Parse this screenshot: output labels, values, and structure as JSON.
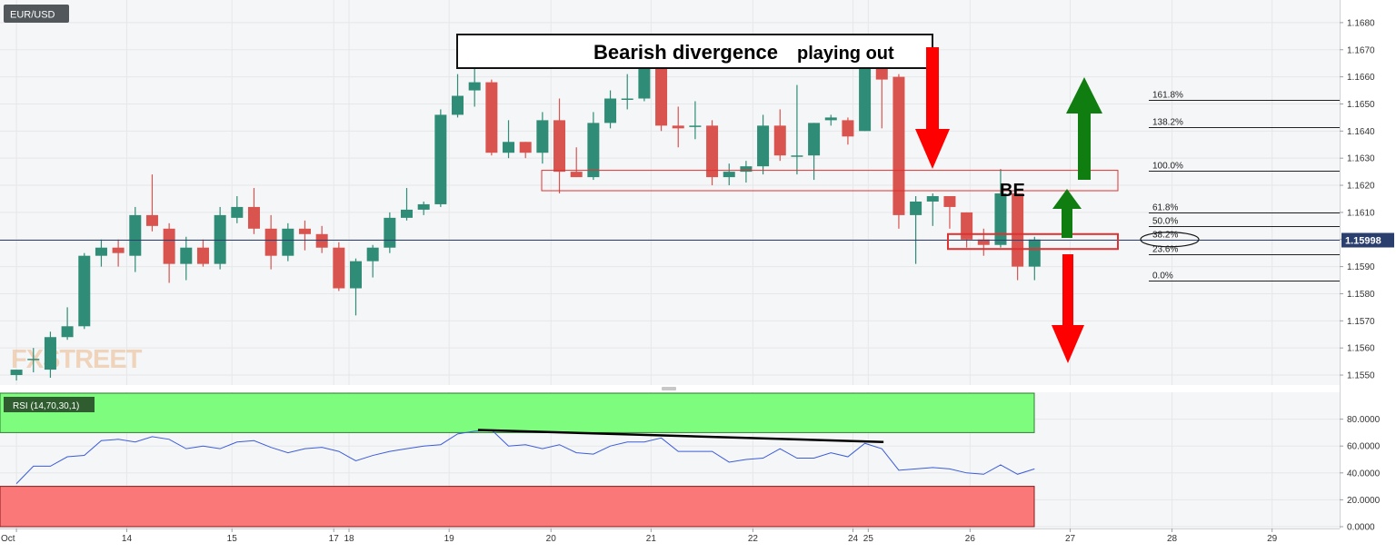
{
  "symbol": "EUR/USD",
  "watermark": "FXSTREET",
  "current_price": "1.15998",
  "colors": {
    "bull": "#2f8c76",
    "bear": "#d9534f",
    "rsi_line": "#3b5bdb",
    "overbought_zone": "#7dfc7d",
    "oversold_zone": "#fa7878",
    "arrow_red": "#ff0000",
    "arrow_green": "#0f7d0f",
    "price_line": "#2a3f6e"
  },
  "annotations": {
    "title": "Bearish divergence",
    "title_suffix": "playing out",
    "be_label": "BE"
  },
  "fib_levels": [
    {
      "label": "161.8%",
      "price": 1.16515
    },
    {
      "label": "138.2%",
      "price": 1.16415
    },
    {
      "label": "100.0%",
      "price": 1.16255
    },
    {
      "label": "61.8%",
      "price": 1.161
    },
    {
      "label": "50.0%",
      "price": 1.1605
    },
    {
      "label": "38.2%",
      "price": 1.16
    },
    {
      "label": "23.6%",
      "price": 1.15945
    },
    {
      "label": "0.0%",
      "price": 1.1585
    }
  ],
  "chart_data": [
    {
      "type": "candlestick",
      "title": "EUR/USD",
      "y_ticks": [
        "1.1680",
        "1.1670",
        "1.1660",
        "1.1650",
        "1.1640",
        "1.1630",
        "1.1620",
        "1.1610",
        "1.1600",
        "1.1590",
        "1.1580",
        "1.1570",
        "1.1560",
        "1.1550"
      ],
      "ylim": [
        1.1547,
        1.1687
      ],
      "x_ticks": [
        {
          "label": "Oct",
          "index": 0
        },
        {
          "label": "14",
          "index": 6.5
        },
        {
          "label": "15",
          "index": 12.7
        },
        {
          "label": "17",
          "index": 18.7
        },
        {
          "label": "18",
          "index": 19.6
        },
        {
          "label": "19",
          "index": 25.5
        },
        {
          "label": "20",
          "index": 31.5
        },
        {
          "label": "21",
          "index": 37.4
        },
        {
          "label": "22",
          "index": 43.4
        },
        {
          "label": "24",
          "index": 49.3
        },
        {
          "label": "25",
          "index": 50.2
        },
        {
          "label": "26",
          "index": 56.2
        },
        {
          "label": "27",
          "index": 62.1
        },
        {
          "label": "28",
          "index": 68.1
        },
        {
          "label": "29",
          "index": 74
        }
      ],
      "candles": [
        {
          "o": 1.155,
          "h": 1.1552,
          "l": 1.1548,
          "c": 1.1552
        },
        {
          "o": 1.1556,
          "h": 1.156,
          "l": 1.1551,
          "c": 1.1556
        },
        {
          "o": 1.1552,
          "h": 1.1566,
          "l": 1.1549,
          "c": 1.1564
        },
        {
          "o": 1.1564,
          "h": 1.1575,
          "l": 1.1563,
          "c": 1.1568
        },
        {
          "o": 1.1568,
          "h": 1.1595,
          "l": 1.1567,
          "c": 1.1594
        },
        {
          "o": 1.1594,
          "h": 1.16,
          "l": 1.159,
          "c": 1.1597
        },
        {
          "o": 1.1597,
          "h": 1.16,
          "l": 1.159,
          "c": 1.1595
        },
        {
          "o": 1.1594,
          "h": 1.1612,
          "l": 1.1588,
          "c": 1.1609
        },
        {
          "o": 1.1609,
          "h": 1.1624,
          "l": 1.1603,
          "c": 1.1605
        },
        {
          "o": 1.1604,
          "h": 1.1606,
          "l": 1.1584,
          "c": 1.1591
        },
        {
          "o": 1.1591,
          "h": 1.1601,
          "l": 1.1585,
          "c": 1.1597
        },
        {
          "o": 1.1597,
          "h": 1.16,
          "l": 1.159,
          "c": 1.1591
        },
        {
          "o": 1.1591,
          "h": 1.1612,
          "l": 1.1589,
          "c": 1.1609
        },
        {
          "o": 1.1608,
          "h": 1.1616,
          "l": 1.1606,
          "c": 1.1612
        },
        {
          "o": 1.1612,
          "h": 1.1619,
          "l": 1.1602,
          "c": 1.1604
        },
        {
          "o": 1.1604,
          "h": 1.1609,
          "l": 1.1589,
          "c": 1.1594
        },
        {
          "o": 1.1594,
          "h": 1.1606,
          "l": 1.1592,
          "c": 1.1604
        },
        {
          "o": 1.1604,
          "h": 1.1607,
          "l": 1.1596,
          "c": 1.1602
        },
        {
          "o": 1.1602,
          "h": 1.1605,
          "l": 1.1595,
          "c": 1.1597
        },
        {
          "o": 1.1597,
          "h": 1.1599,
          "l": 1.1581,
          "c": 1.1582
        },
        {
          "o": 1.1582,
          "h": 1.1593,
          "l": 1.1572,
          "c": 1.1592
        },
        {
          "o": 1.1592,
          "h": 1.1598,
          "l": 1.1586,
          "c": 1.1597
        },
        {
          "o": 1.1597,
          "h": 1.161,
          "l": 1.1595,
          "c": 1.1608
        },
        {
          "o": 1.1608,
          "h": 1.1619,
          "l": 1.1607,
          "c": 1.1611
        },
        {
          "o": 1.1611,
          "h": 1.1614,
          "l": 1.1609,
          "c": 1.1613
        },
        {
          "o": 1.1613,
          "h": 1.1648,
          "l": 1.1612,
          "c": 1.1646
        },
        {
          "o": 1.1646,
          "h": 1.1661,
          "l": 1.1645,
          "c": 1.1653
        },
        {
          "o": 1.1655,
          "h": 1.167,
          "l": 1.1649,
          "c": 1.1658
        },
        {
          "o": 1.1658,
          "h": 1.1659,
          "l": 1.1631,
          "c": 1.1632
        },
        {
          "o": 1.1632,
          "h": 1.1644,
          "l": 1.163,
          "c": 1.1636
        },
        {
          "o": 1.1636,
          "h": 1.1636,
          "l": 1.163,
          "c": 1.1632
        },
        {
          "o": 1.1632,
          "h": 1.1647,
          "l": 1.1628,
          "c": 1.1644
        },
        {
          "o": 1.1644,
          "h": 1.1652,
          "l": 1.1617,
          "c": 1.1625
        },
        {
          "o": 1.1625,
          "h": 1.1634,
          "l": 1.1623,
          "c": 1.1623
        },
        {
          "o": 1.1623,
          "h": 1.1647,
          "l": 1.1622,
          "c": 1.1643
        },
        {
          "o": 1.1643,
          "h": 1.1655,
          "l": 1.1641,
          "c": 1.1652
        },
        {
          "o": 1.1652,
          "h": 1.1661,
          "l": 1.1648,
          "c": 1.1652
        },
        {
          "o": 1.1652,
          "h": 1.167,
          "l": 1.1651,
          "c": 1.1666
        },
        {
          "o": 1.1666,
          "h": 1.1666,
          "l": 1.164,
          "c": 1.1642
        },
        {
          "o": 1.1642,
          "h": 1.1649,
          "l": 1.1634,
          "c": 1.1641
        },
        {
          "o": 1.1642,
          "h": 1.1651,
          "l": 1.1637,
          "c": 1.1642
        },
        {
          "o": 1.1642,
          "h": 1.1644,
          "l": 1.162,
          "c": 1.1623
        },
        {
          "o": 1.1623,
          "h": 1.1628,
          "l": 1.162,
          "c": 1.1625
        },
        {
          "o": 1.1625,
          "h": 1.1629,
          "l": 1.1621,
          "c": 1.1627
        },
        {
          "o": 1.1627,
          "h": 1.1646,
          "l": 1.1624,
          "c": 1.1642
        },
        {
          "o": 1.1642,
          "h": 1.1648,
          "l": 1.1629,
          "c": 1.1631
        },
        {
          "o": 1.1631,
          "h": 1.1657,
          "l": 1.1624,
          "c": 1.1631
        },
        {
          "o": 1.1631,
          "h": 1.1643,
          "l": 1.1622,
          "c": 1.1643
        },
        {
          "o": 1.1644,
          "h": 1.1646,
          "l": 1.1642,
          "c": 1.1645
        },
        {
          "o": 1.1644,
          "h": 1.1645,
          "l": 1.1635,
          "c": 1.1638
        },
        {
          "o": 1.164,
          "h": 1.1666,
          "l": 1.164,
          "c": 1.1665
        },
        {
          "o": 1.1665,
          "h": 1.1666,
          "l": 1.1641,
          "c": 1.1659
        },
        {
          "o": 1.166,
          "h": 1.1661,
          "l": 1.1604,
          "c": 1.1609
        },
        {
          "o": 1.1609,
          "h": 1.1616,
          "l": 1.1591,
          "c": 1.1614
        },
        {
          "o": 1.1614,
          "h": 1.1617,
          "l": 1.1605,
          "c": 1.1616
        },
        {
          "o": 1.1616,
          "h": 1.1616,
          "l": 1.1604,
          "c": 1.1612
        },
        {
          "o": 1.161,
          "h": 1.161,
          "l": 1.1597,
          "c": 1.16
        },
        {
          "o": 1.16,
          "h": 1.1604,
          "l": 1.1594,
          "c": 1.1598
        },
        {
          "o": 1.1598,
          "h": 1.1626,
          "l": 1.1597,
          "c": 1.1617
        },
        {
          "o": 1.1617,
          "h": 1.1617,
          "l": 1.1585,
          "c": 1.159
        },
        {
          "o": 1.159,
          "h": 1.1601,
          "l": 1.1585,
          "c": 1.16
        }
      ]
    },
    {
      "type": "line",
      "title": "RSI (14,70,30,1)",
      "y_ticks": [
        "80.0000",
        "60.0000",
        "40.0000",
        "20.0000",
        "0.0000"
      ],
      "ylim": [
        0,
        100
      ],
      "zones": {
        "overbought": [
          70,
          100
        ],
        "oversold": [
          0,
          30
        ]
      },
      "values": [
        32,
        45,
        45,
        52,
        53,
        64,
        65,
        63,
        67,
        65,
        58,
        60,
        58,
        63,
        64,
        59,
        55,
        58,
        59,
        56,
        49,
        53,
        56,
        58,
        60,
        61,
        69,
        71,
        72,
        60,
        61,
        58,
        61,
        55,
        54,
        60,
        63,
        63,
        66,
        56,
        56,
        56,
        48,
        50,
        51,
        58,
        51,
        51,
        55,
        52,
        62,
        58,
        42,
        43,
        44,
        43,
        40,
        39,
        46,
        39,
        43
      ]
    }
  ]
}
